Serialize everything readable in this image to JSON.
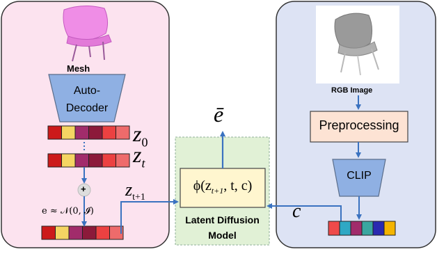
{
  "left_panel": {
    "mesh_label": "Mesh",
    "auto_decoder_label": "Auto-\nDecoder",
    "z0": "z",
    "z0_sub": "0",
    "zt": "z",
    "zt_sub": "t",
    "plus": "+",
    "noise": "e ≈ 𝒩(0, 𝓘)",
    "z_next": "z",
    "z_next_sub": "t+1",
    "latent_colors_z0": [
      "#cc1a1a",
      "#f5d563",
      "#a12c6b",
      "#8c1a3a",
      "#ec4141",
      "#ee6b6b"
    ],
    "latent_colors_zt": [
      "#cc1a1a",
      "#f5d563",
      "#a12c6b",
      "#8c1a3a",
      "#ec4141",
      "#ee6b6b"
    ],
    "latent_colors_zt1": [
      "#cc1a1a",
      "#f5d563",
      "#a12c6b",
      "#8c1a3a",
      "#ec4141",
      "#ee6b6b"
    ]
  },
  "center": {
    "output": "ē",
    "phi": "ϕ(z",
    "phi_sub": "t+1",
    "phi_rest": ", t, c)",
    "model_line1": "Latent Diffusion",
    "model_line2": "Model"
  },
  "right_panel": {
    "rgb_label": "RGB Image",
    "preprocessing": "Preprocessing",
    "clip": "CLIP",
    "c": "c",
    "clip_colors": [
      "#ee4a4a",
      "#2fa8c4",
      "#a12c6b",
      "#3aa6a0",
      "#2a2ab0",
      "#f4b400"
    ]
  },
  "colors": {
    "left_bg": "#fce3ef",
    "right_bg": "#dde3f4",
    "arrow": "#3a72c0",
    "encoder": "#8fb0e3",
    "preproc": "#fde3d4",
    "center_box": "#e1f1d6",
    "phi_box": "#fff6cf"
  }
}
